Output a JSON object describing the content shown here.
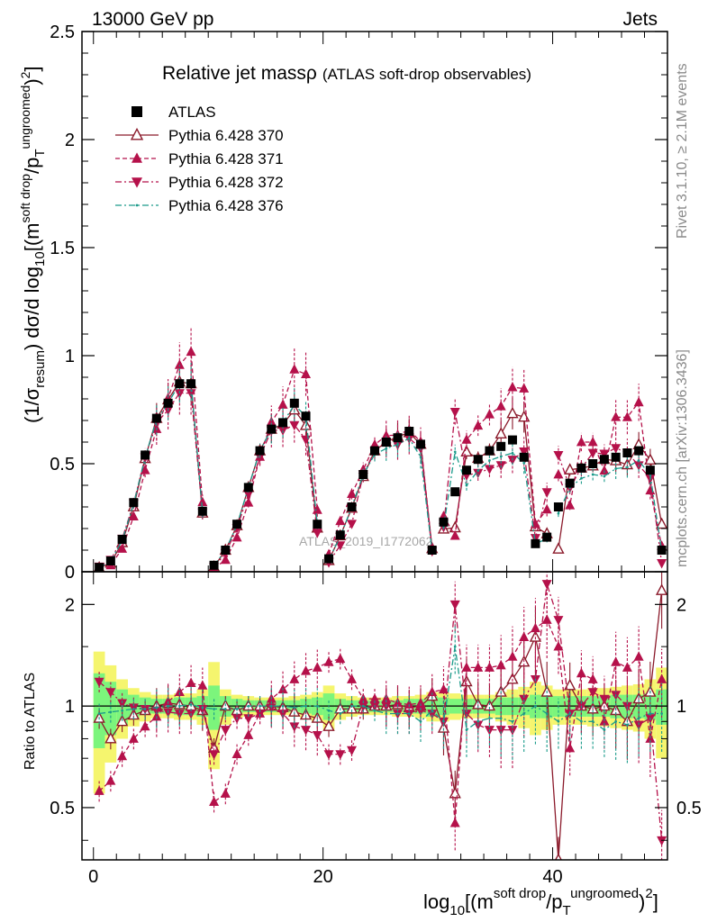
{
  "header": {
    "left": "13000 GeV pp",
    "right": "Jets"
  },
  "title": {
    "main": "Relative jet massρ",
    "sub": "(ATLAS soft-drop observables)"
  },
  "side_labels": {
    "rivet": "Rivet 3.1.10, ≥ 2.1M events",
    "mcplots": "mcplots.cern.ch [arXiv:1306.3436]"
  },
  "watermark": "ATLAS_2019_I1772062",
  "axes": {
    "ylabel_main": {
      "p1": "(1/σ",
      "p1_sub": "resum",
      "p2": ") dσ/d log",
      "p2_sub": "10",
      "p3": "[(m",
      "p3_sup": "soft drop",
      "p4": "/p",
      "p4_sub": "T",
      "p4_sup": "ungroomed",
      "p5": ")",
      "p5_sup": "2",
      "p6": "]"
    },
    "ylabel_ratio": "Ratio to ATLAS",
    "xlabel": {
      "p1": "log",
      "p1_sub": "10",
      "p2": "[(m",
      "p2_sup": "soft drop",
      "p3": "/p",
      "p3_sub": "T",
      "p3_sup": "ungroomed",
      "p4": ")",
      "p4_sup": "2",
      "p5": "]"
    }
  },
  "legend": [
    {
      "label": "ATLAS",
      "color": "#000000",
      "marker": "square",
      "line": "none"
    },
    {
      "label": "Pythia 6.428 370",
      "color": "#8b1a2b",
      "marker": "open-triangle-up",
      "line": "solid"
    },
    {
      "label": "Pythia 6.428 371",
      "color": "#b5114a",
      "marker": "triangle-up",
      "line": "dashed"
    },
    {
      "label": "Pythia 6.428 372",
      "color": "#b5114a",
      "marker": "triangle-down",
      "line": "dashdot"
    },
    {
      "label": "Pythia 6.428 376",
      "color": "#1a9a8a",
      "marker": "dot",
      "line": "dashdot"
    }
  ],
  "chart_data": {
    "type": "line",
    "x_range": [
      -1,
      50
    ],
    "x_ticks": [
      0,
      20,
      40
    ],
    "main": {
      "ylim": [
        0,
        2.5
      ],
      "y_ticks": [
        0,
        0.5,
        1,
        1.5,
        2,
        2.5
      ],
      "y_tick_labels": [
        "0",
        "0.5",
        "1",
        "1.5",
        "2",
        "2.5"
      ]
    },
    "ratio": {
      "ylim": [
        0.35,
        2.5
      ],
      "log_scale": true,
      "y_ticks": [
        0.5,
        1,
        2
      ],
      "y_tick_labels": [
        "0.5",
        "1",
        "2"
      ],
      "band_inner_color": "#7cf57c",
      "band_outer_color": "#f5f56e"
    },
    "x": [
      0.5,
      1.5,
      2.5,
      3.5,
      4.5,
      5.5,
      6.5,
      7.5,
      8.5,
      9.5,
      10.5,
      11.5,
      12.5,
      13.5,
      14.5,
      15.5,
      16.5,
      17.5,
      18.5,
      19.5,
      20.5,
      21.5,
      22.5,
      23.5,
      24.5,
      25.5,
      26.5,
      27.5,
      28.5,
      29.5,
      30.5,
      31.5,
      32.5,
      33.5,
      34.5,
      35.5,
      36.5,
      37.5,
      38.5,
      39.5,
      40.5,
      41.5,
      42.5,
      43.5,
      44.5,
      45.5,
      46.5,
      47.5,
      48.5,
      49.5
    ],
    "atlas": {
      "values": [
        0.02,
        0.05,
        0.15,
        0.32,
        0.54,
        0.71,
        0.78,
        0.87,
        0.87,
        0.28,
        0.03,
        0.1,
        0.22,
        0.39,
        0.56,
        0.66,
        0.69,
        0.78,
        0.72,
        0.22,
        0.06,
        0.17,
        0.3,
        0.45,
        0.56,
        0.6,
        0.62,
        0.65,
        0.59,
        0.1,
        0.23,
        0.37,
        0.47,
        0.52,
        0.56,
        0.58,
        0.61,
        0.53,
        0.13,
        0.16,
        0.3,
        0.41,
        0.48,
        0.5,
        0.52,
        0.53,
        0.55,
        0.56,
        0.47,
        0.1
      ],
      "inner_rel": [
        0.25,
        0.18,
        0.12,
        0.08,
        0.06,
        0.05,
        0.05,
        0.06,
        0.06,
        0.07,
        0.15,
        0.07,
        0.05,
        0.04,
        0.04,
        0.04,
        0.04,
        0.04,
        0.05,
        0.06,
        0.09,
        0.05,
        0.04,
        0.04,
        0.04,
        0.04,
        0.04,
        0.05,
        0.05,
        0.07,
        0.06,
        0.05,
        0.05,
        0.05,
        0.05,
        0.06,
        0.06,
        0.06,
        0.08,
        0.08,
        0.07,
        0.07,
        0.07,
        0.07,
        0.07,
        0.08,
        0.08,
        0.08,
        0.09,
        0.12
      ],
      "outer_rel": [
        0.45,
        0.32,
        0.2,
        0.13,
        0.1,
        0.08,
        0.08,
        0.09,
        0.09,
        0.12,
        0.35,
        0.12,
        0.08,
        0.07,
        0.06,
        0.06,
        0.06,
        0.07,
        0.08,
        0.1,
        0.15,
        0.09,
        0.07,
        0.06,
        0.06,
        0.06,
        0.07,
        0.07,
        0.08,
        0.1,
        0.1,
        0.09,
        0.08,
        0.08,
        0.08,
        0.1,
        0.12,
        0.14,
        0.18,
        0.15,
        0.12,
        0.12,
        0.12,
        0.13,
        0.13,
        0.14,
        0.15,
        0.16,
        0.2,
        0.3
      ]
    },
    "series": [
      {
        "name": "Pythia 6.428 370",
        "ratio": [
          0.92,
          0.8,
          0.9,
          0.94,
          0.97,
          1.0,
          1.02,
          1.01,
          1.0,
          0.97,
          0.75,
          1.0,
          0.97,
          1.0,
          1.0,
          1.0,
          0.99,
          0.96,
          0.94,
          0.92,
          0.87,
          0.98,
          0.98,
          0.98,
          1.0,
          1.0,
          1.01,
          0.99,
          1.0,
          1.07,
          0.86,
          0.55,
          1.18,
          1.01,
          1.0,
          1.1,
          1.2,
          1.35,
          1.6,
          1.1,
          0.35,
          1.15,
          1.0,
          0.98,
          1.0,
          0.97,
          0.9,
          1.05,
          1.1,
          2.2
        ]
      },
      {
        "name": "Pythia 6.428 371",
        "ratio": [
          0.56,
          0.6,
          0.71,
          0.8,
          0.87,
          0.93,
          1.03,
          1.1,
          1.17,
          1.15,
          0.52,
          0.55,
          0.72,
          0.82,
          0.95,
          1.05,
          1.12,
          1.2,
          1.27,
          1.3,
          1.35,
          1.38,
          1.2,
          1.05,
          1.05,
          1.05,
          1.02,
          1.01,
          1.02,
          1.1,
          1.12,
          0.45,
          1.3,
          1.3,
          1.3,
          1.32,
          1.4,
          1.6,
          1.7,
          1.8,
          1.5,
          0.75,
          1.25,
          1.2,
          0.9,
          1.35,
          1.3,
          1.4,
          0.8,
          1.2
        ]
      },
      {
        "name": "Pythia 6.428 372",
        "ratio": [
          1.18,
          1.1,
          1.02,
          0.99,
          0.98,
          0.97,
          0.96,
          0.95,
          0.95,
          0.98,
          0.72,
          0.85,
          0.92,
          0.92,
          0.95,
          0.99,
          0.95,
          0.87,
          0.85,
          0.82,
          0.72,
          0.72,
          0.74,
          1.0,
          1.0,
          1.0,
          0.95,
          0.95,
          0.97,
          0.95,
          0.9,
          2.0,
          0.95,
          0.88,
          0.85,
          0.85,
          0.85,
          1.05,
          1.2,
          2.3,
          1.8,
          0.95,
          1.0,
          1.1,
          1.05,
          1.08,
          1.0,
          0.88,
          0.92,
          0.4
        ]
      },
      {
        "name": "Pythia 6.428 376",
        "ratio": [
          0.95,
          0.96,
          0.97,
          0.98,
          0.98,
          0.99,
          1.0,
          1.0,
          1.01,
          0.99,
          0.98,
          0.98,
          0.98,
          1.0,
          1.0,
          1.0,
          1.0,
          0.99,
          1.0,
          1.0,
          0.97,
          0.95,
          1.0,
          1.0,
          0.97,
          0.95,
          0.95,
          0.95,
          0.9,
          0.97,
          0.9,
          1.5,
          0.85,
          0.9,
          0.92,
          0.92,
          0.9,
          0.95,
          1.0,
          0.95,
          0.9,
          0.95,
          0.9,
          0.9,
          0.85,
          0.9,
          0.88,
          0.92,
          0.95,
          0.95
        ]
      }
    ]
  }
}
